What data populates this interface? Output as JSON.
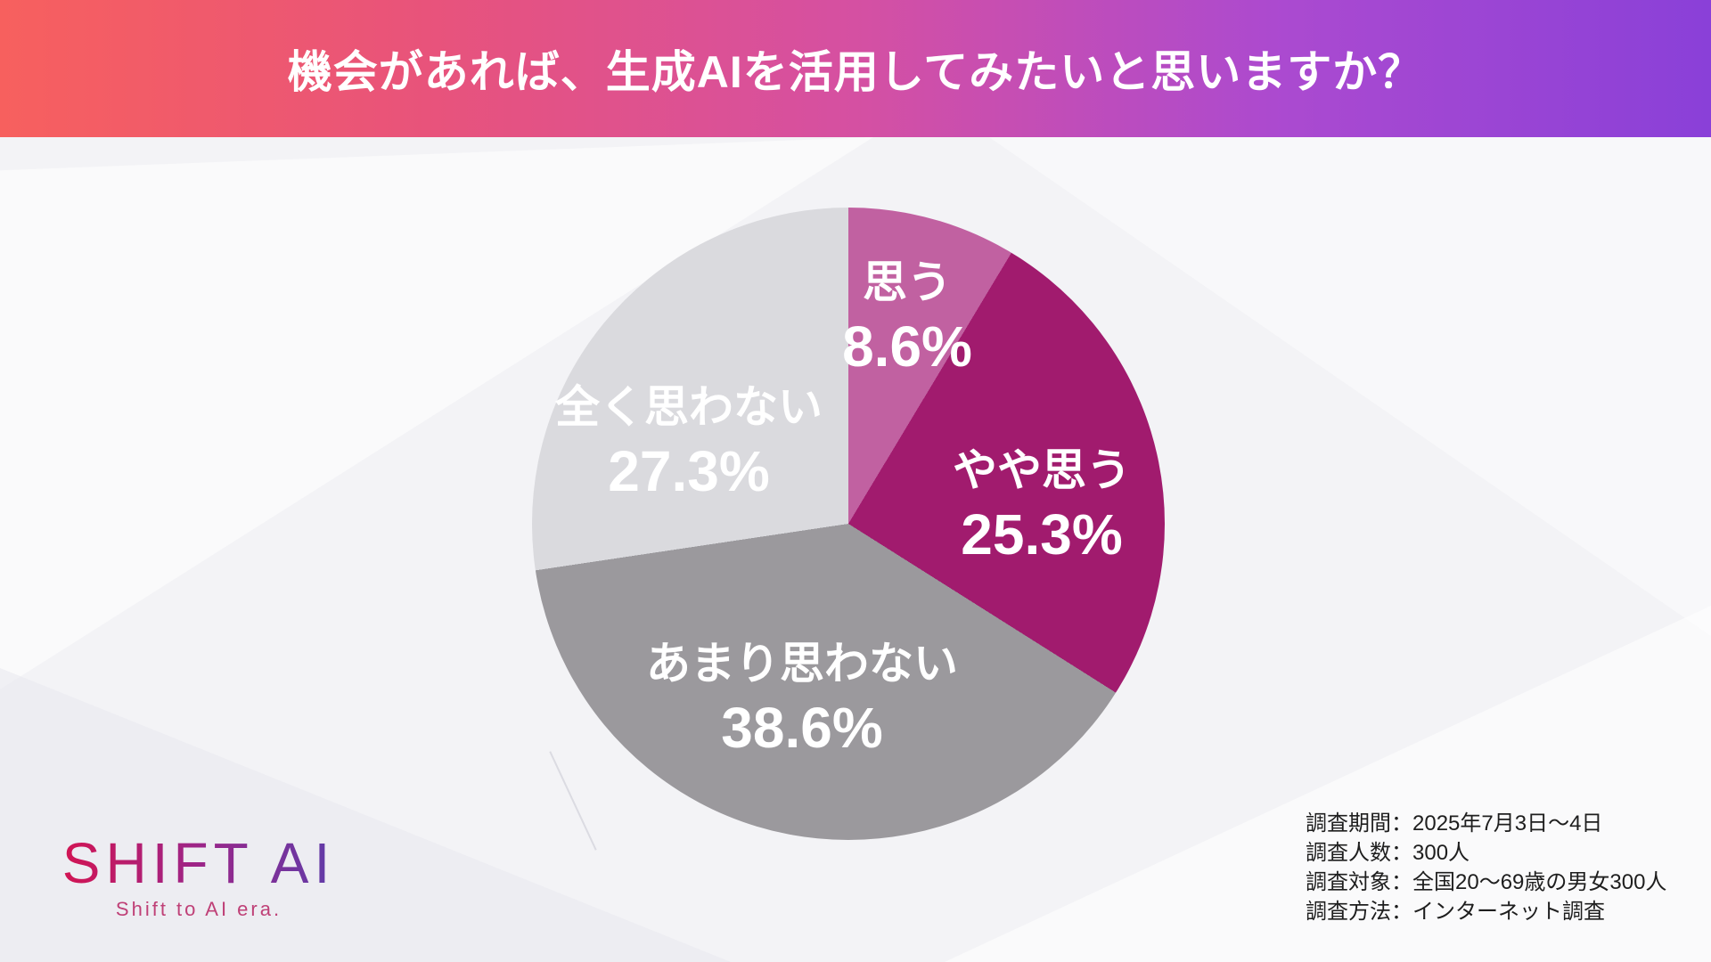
{
  "header": {
    "title": "機会があれば、生成AIを活用してみたいと思いますか？"
  },
  "chart_data": {
    "type": "pie",
    "title": "機会があれば、生成AIを活用してみたいと思いますか？",
    "start_angle_deg": 0,
    "direction": "clockwise",
    "label_color": "#ffffff",
    "segments": [
      {
        "label": "思う",
        "value_pct": 8.6,
        "pct_text": "8.6%",
        "color": "#c161a1"
      },
      {
        "label": "やや思う",
        "value_pct": 25.3,
        "pct_text": "25.3%",
        "color": "#a11b6e"
      },
      {
        "label": "あまり思わない",
        "value_pct": 38.6,
        "pct_text": "38.6%",
        "color": "#9b999d"
      },
      {
        "label": "全く思わない",
        "value_pct": 27.3,
        "pct_text": "27.3%",
        "color": "#dadade"
      }
    ]
  },
  "logo": {
    "name": "SHIFT AI",
    "tagline": "Shift to AI era."
  },
  "survey": {
    "lines": [
      "調査期間：2025年7月3日〜4日",
      "調査人数：300人",
      "調査対象：全国20〜69歳の男女300人",
      "調査方法：インターネット調査"
    ]
  },
  "colors": {
    "header_gradient": [
      "#f7605e",
      "#e8537b",
      "#d550a2",
      "#ab4ad0",
      "#8a40d8"
    ],
    "logo_gradient": [
      "#d6134f",
      "#9c2588",
      "#5b3dab"
    ],
    "tagline": "#bf4077",
    "background": "#f3f3f6",
    "survey_text": "#1e1e1e"
  }
}
